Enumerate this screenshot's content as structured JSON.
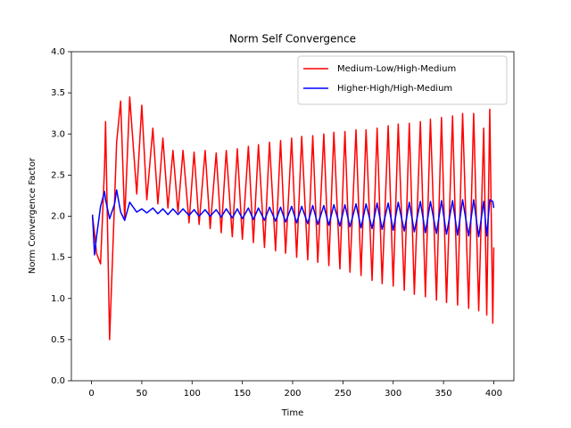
{
  "chart_data": {
    "type": "line",
    "title": "Norm Self Convergence",
    "x_label": "Time",
    "y_label": "Norm Convergence Factor",
    "x": [
      1,
      3,
      5,
      9,
      13,
      14,
      18,
      23,
      25,
      29,
      33,
      38,
      45,
      50,
      55,
      61,
      66,
      71,
      76,
      81,
      86,
      91,
      97,
      102,
      107,
      113,
      118,
      124,
      129,
      134,
      140,
      145,
      150,
      156,
      161,
      166,
      172,
      177,
      183,
      188,
      193,
      199,
      204,
      209,
      215,
      220,
      225,
      231,
      236,
      241,
      247,
      252,
      257,
      263,
      268,
      273,
      279,
      284,
      289,
      295,
      300,
      305,
      311,
      316,
      321,
      327,
      332,
      337,
      343,
      348,
      353,
      359,
      364,
      369,
      375,
      380,
      385,
      390,
      393,
      396,
      399,
      400
    ],
    "series": [
      {
        "name": "Medium-Low/High-Medium",
        "color": "#ff0000",
        "values": [
          2.0,
          1.8,
          1.55,
          1.42,
          2.6,
          3.15,
          0.5,
          2.2,
          2.9,
          3.4,
          1.95,
          3.45,
          2.27,
          3.35,
          2.2,
          3.07,
          2.15,
          2.95,
          2.1,
          2.8,
          2.05,
          2.8,
          1.92,
          2.78,
          1.9,
          2.8,
          1.85,
          2.77,
          1.8,
          2.8,
          1.75,
          2.82,
          1.72,
          2.85,
          1.68,
          2.87,
          1.62,
          2.9,
          1.58,
          2.92,
          1.55,
          2.95,
          1.5,
          2.97,
          1.47,
          2.98,
          1.44,
          3.0,
          1.4,
          3.02,
          1.36,
          3.03,
          1.32,
          3.05,
          1.28,
          3.05,
          1.22,
          3.07,
          1.18,
          3.1,
          1.15,
          3.12,
          1.1,
          3.13,
          1.05,
          3.15,
          1.02,
          3.18,
          0.98,
          3.2,
          0.95,
          3.22,
          0.92,
          3.25,
          0.88,
          3.25,
          0.85,
          3.07,
          0.8,
          3.3,
          0.7,
          1.62
        ]
      },
      {
        "name": "Higher-High/High-Medium",
        "color": "#0000ff",
        "values": [
          2.02,
          1.53,
          1.75,
          2.12,
          2.3,
          2.2,
          1.97,
          2.15,
          2.32,
          2.05,
          1.95,
          2.17,
          2.05,
          2.09,
          2.04,
          2.1,
          2.03,
          2.09,
          2.02,
          2.09,
          2.02,
          2.09,
          2.01,
          2.08,
          2.0,
          2.08,
          2.0,
          2.08,
          1.99,
          2.09,
          1.98,
          2.09,
          1.97,
          2.1,
          1.96,
          2.1,
          1.95,
          2.11,
          1.94,
          2.11,
          1.93,
          2.12,
          1.92,
          2.12,
          1.91,
          2.13,
          1.9,
          2.13,
          1.89,
          2.14,
          1.88,
          2.14,
          1.87,
          2.15,
          1.86,
          2.15,
          1.85,
          2.16,
          1.84,
          2.16,
          1.83,
          2.17,
          1.82,
          2.17,
          1.81,
          2.18,
          1.8,
          2.18,
          1.79,
          2.19,
          1.78,
          2.19,
          1.77,
          2.2,
          1.76,
          2.2,
          1.75,
          2.18,
          1.76,
          2.2,
          2.18,
          2.1
        ]
      }
    ],
    "xlim": [
      -20,
      420
    ],
    "ylim": [
      0,
      4
    ],
    "xticks": [
      0,
      50,
      100,
      150,
      200,
      250,
      300,
      350,
      400
    ],
    "yticks": [
      {
        "value": 0,
        "label": "0.0"
      },
      0.5,
      {
        "value": 1,
        "label": "1.0"
      },
      1.5,
      {
        "value": 2,
        "label": "2.0"
      },
      2.5,
      {
        "value": 3,
        "label": "3.0"
      },
      3.5,
      {
        "value": 4,
        "label": "4.0"
      }
    ],
    "legend": "upper right",
    "grid": false
  }
}
